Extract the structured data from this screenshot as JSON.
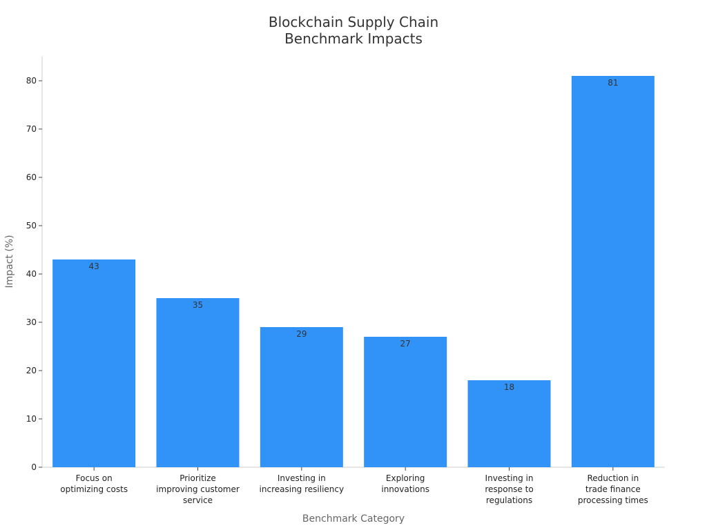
{
  "chart_data": {
    "type": "bar",
    "title": "Blockchain Supply Chain\nBenchmark Impacts",
    "xlabel": "Benchmark Category",
    "ylabel": "Impact (%)",
    "categories": [
      "Focus on\noptimizing costs",
      "Prioritize\nimproving customer\nservice",
      "Investing in\nincreasing resiliency",
      "Exploring\ninnovations",
      "Investing in\nresponse to\nregulations",
      "Reduction in\ntrade finance\nprocessing times"
    ],
    "values": [
      43,
      35,
      29,
      27,
      18,
      81
    ],
    "ylim": [
      0,
      85
    ],
    "yticks": [
      0,
      10,
      20,
      30,
      40,
      50,
      60,
      70,
      80
    ],
    "grid": false,
    "bar_color": "#3192f7",
    "data_labels": true
  }
}
